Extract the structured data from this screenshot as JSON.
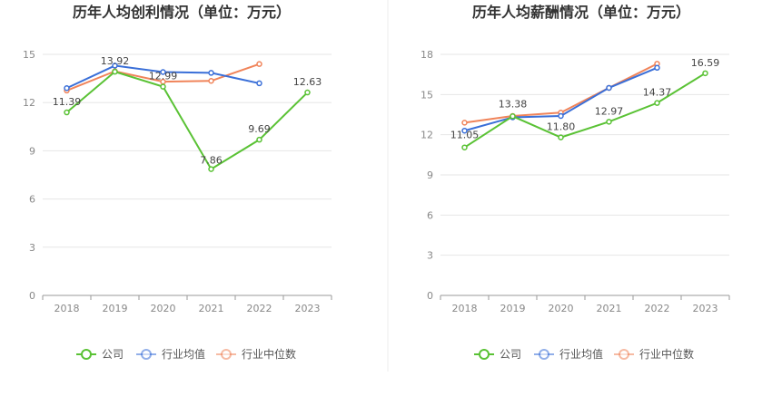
{
  "chart_data": [
    {
      "type": "line",
      "title": "历年人均创利情况（单位：万元）",
      "categories": [
        "2018",
        "2019",
        "2020",
        "2021",
        "2022",
        "2023"
      ],
      "ylim": [
        0,
        15
      ],
      "yticks": [
        0,
        3,
        6,
        9,
        12,
        15
      ],
      "grid": true,
      "legend_position": "bottom-center",
      "series": [
        {
          "name": "公司",
          "color": "#5ac235",
          "values": [
            11.39,
            13.92,
            12.99,
            7.86,
            9.69,
            12.63
          ],
          "labels": [
            "11.39",
            "13.92",
            "12.99",
            "7.86",
            "9.69",
            "12.63"
          ]
        },
        {
          "name": "行业均值",
          "color": "#3a6fd8",
          "values": [
            12.9,
            14.3,
            13.9,
            13.85,
            13.2,
            null
          ]
        },
        {
          "name": "行业中位数",
          "color": "#f0845a",
          "values": [
            12.75,
            13.95,
            13.3,
            13.35,
            14.4,
            null
          ]
        }
      ]
    },
    {
      "type": "line",
      "title": "历年人均薪酬情况（单位：万元）",
      "categories": [
        "2018",
        "2019",
        "2020",
        "2021",
        "2022",
        "2023"
      ],
      "ylim": [
        0,
        18
      ],
      "yticks": [
        0,
        3,
        6,
        9,
        12,
        15,
        18
      ],
      "grid": true,
      "legend_position": "bottom-center",
      "series": [
        {
          "name": "公司",
          "color": "#5ac235",
          "values": [
            11.05,
            13.38,
            11.8,
            12.97,
            14.37,
            16.59
          ],
          "labels": [
            "11.05",
            "13.38",
            "11.80",
            "12.97",
            "14.37",
            "16.59"
          ]
        },
        {
          "name": "行业均值",
          "color": "#3a6fd8",
          "values": [
            12.3,
            13.3,
            13.4,
            15.5,
            17.0,
            null
          ]
        },
        {
          "name": "行业中位数",
          "color": "#f0845a",
          "values": [
            12.9,
            13.4,
            13.65,
            15.5,
            17.3,
            null
          ]
        }
      ]
    }
  ]
}
